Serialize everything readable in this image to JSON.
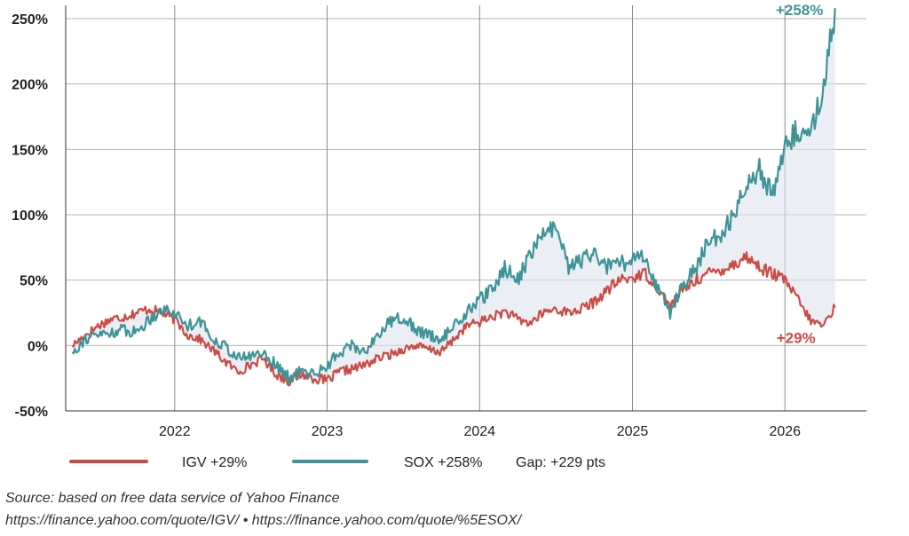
{
  "chart_data": {
    "type": "line",
    "ylim": [
      -50,
      250
    ],
    "yticks": [
      -50,
      0,
      50,
      100,
      150,
      200,
      250
    ],
    "ytick_labels": [
      "-50%",
      "0%",
      "50%",
      "100%",
      "150%",
      "200%",
      "250%"
    ],
    "xlim": [
      "2021-04-15",
      "2026-07-15"
    ],
    "xticks": [
      "2022-01-01",
      "2023-01-01",
      "2024-01-01",
      "2025-01-01",
      "2026-01-01"
    ],
    "xtick_labels": [
      "2022",
      "2023",
      "2024",
      "2025",
      "2026"
    ],
    "grid": true,
    "legend_position": "bottom-left",
    "fill_between_series": true,
    "series": [
      {
        "name": "IGV +29%",
        "color": "#cc4b45",
        "end_label": "+29%",
        "points": [
          [
            "2021-05-01",
            0
          ],
          [
            "2021-06-01",
            8
          ],
          [
            "2021-07-01",
            15
          ],
          [
            "2021-08-01",
            20
          ],
          [
            "2021-09-01",
            22
          ],
          [
            "2021-10-01",
            25
          ],
          [
            "2021-11-01",
            28
          ],
          [
            "2021-12-01",
            25
          ],
          [
            "2022-01-01",
            20
          ],
          [
            "2022-02-01",
            8
          ],
          [
            "2022-03-01",
            5
          ],
          [
            "2022-04-01",
            -3
          ],
          [
            "2022-05-01",
            -12
          ],
          [
            "2022-06-01",
            -20
          ],
          [
            "2022-07-01",
            -15
          ],
          [
            "2022-08-01",
            -10
          ],
          [
            "2022-09-01",
            -22
          ],
          [
            "2022-10-01",
            -27
          ],
          [
            "2022-11-01",
            -22
          ],
          [
            "2022-12-01",
            -25
          ],
          [
            "2023-01-01",
            -27
          ],
          [
            "2023-02-01",
            -20
          ],
          [
            "2023-03-01",
            -18
          ],
          [
            "2023-04-01",
            -15
          ],
          [
            "2023-05-01",
            -10
          ],
          [
            "2023-06-01",
            -7
          ],
          [
            "2023-07-01",
            -3
          ],
          [
            "2023-08-01",
            0
          ],
          [
            "2023-09-01",
            -3
          ],
          [
            "2023-10-01",
            -5
          ],
          [
            "2023-11-01",
            5
          ],
          [
            "2023-12-01",
            15
          ],
          [
            "2024-01-01",
            18
          ],
          [
            "2024-02-01",
            22
          ],
          [
            "2024-03-01",
            26
          ],
          [
            "2024-04-01",
            20
          ],
          [
            "2024-05-01",
            17
          ],
          [
            "2024-06-01",
            25
          ],
          [
            "2024-07-01",
            28
          ],
          [
            "2024-08-01",
            25
          ],
          [
            "2024-09-01",
            28
          ],
          [
            "2024-10-01",
            33
          ],
          [
            "2024-11-01",
            42
          ],
          [
            "2024-12-01",
            50
          ],
          [
            "2025-01-01",
            52
          ],
          [
            "2025-02-01",
            55
          ],
          [
            "2025-03-01",
            45
          ],
          [
            "2025-04-01",
            30
          ],
          [
            "2025-05-01",
            42
          ],
          [
            "2025-06-01",
            50
          ],
          [
            "2025-07-01",
            55
          ],
          [
            "2025-08-01",
            58
          ],
          [
            "2025-09-01",
            62
          ],
          [
            "2025-10-01",
            68
          ],
          [
            "2025-11-01",
            60
          ],
          [
            "2025-12-01",
            55
          ],
          [
            "2026-01-01",
            50
          ],
          [
            "2026-02-01",
            35
          ],
          [
            "2026-03-01",
            20
          ],
          [
            "2026-04-01",
            15
          ],
          [
            "2026-05-01",
            29
          ]
        ]
      },
      {
        "name": "SOX +258%",
        "color": "#3e9497",
        "end_label": "+258%",
        "points": [
          [
            "2021-05-01",
            -5
          ],
          [
            "2021-06-01",
            5
          ],
          [
            "2021-07-01",
            8
          ],
          [
            "2021-08-01",
            10
          ],
          [
            "2021-09-01",
            12
          ],
          [
            "2021-10-01",
            10
          ],
          [
            "2021-11-01",
            20
          ],
          [
            "2021-12-01",
            28
          ],
          [
            "2022-01-01",
            25
          ],
          [
            "2022-02-01",
            15
          ],
          [
            "2022-03-01",
            20
          ],
          [
            "2022-04-01",
            5
          ],
          [
            "2022-05-01",
            0
          ],
          [
            "2022-06-01",
            -10
          ],
          [
            "2022-07-01",
            -8
          ],
          [
            "2022-08-01",
            -5
          ],
          [
            "2022-09-01",
            -15
          ],
          [
            "2022-10-01",
            -25
          ],
          [
            "2022-11-01",
            -20
          ],
          [
            "2022-12-01",
            -22
          ],
          [
            "2023-01-01",
            -15
          ],
          [
            "2023-02-01",
            -5
          ],
          [
            "2023-03-01",
            0
          ],
          [
            "2023-04-01",
            -5
          ],
          [
            "2023-05-01",
            8
          ],
          [
            "2023-06-01",
            18
          ],
          [
            "2023-07-01",
            22
          ],
          [
            "2023-08-01",
            12
          ],
          [
            "2023-09-01",
            8
          ],
          [
            "2023-10-01",
            5
          ],
          [
            "2023-11-01",
            15
          ],
          [
            "2023-12-01",
            25
          ],
          [
            "2024-01-01",
            35
          ],
          [
            "2024-02-01",
            42
          ],
          [
            "2024-03-01",
            60
          ],
          [
            "2024-04-01",
            50
          ],
          [
            "2024-05-01",
            70
          ],
          [
            "2024-06-01",
            85
          ],
          [
            "2024-07-01",
            90
          ],
          [
            "2024-08-01",
            60
          ],
          [
            "2024-09-01",
            65
          ],
          [
            "2024-10-01",
            70
          ],
          [
            "2024-11-01",
            60
          ],
          [
            "2024-12-01",
            62
          ],
          [
            "2025-01-01",
            65
          ],
          [
            "2025-02-01",
            68
          ],
          [
            "2025-03-01",
            45
          ],
          [
            "2025-04-01",
            25
          ],
          [
            "2025-05-01",
            45
          ],
          [
            "2025-06-01",
            60
          ],
          [
            "2025-07-01",
            78
          ],
          [
            "2025-08-01",
            85
          ],
          [
            "2025-09-01",
            100
          ],
          [
            "2025-10-01",
            125
          ],
          [
            "2025-11-01",
            135
          ],
          [
            "2025-12-01",
            115
          ],
          [
            "2026-01-01",
            150
          ],
          [
            "2026-02-01",
            165
          ],
          [
            "2026-03-01",
            160
          ],
          [
            "2026-04-01",
            195
          ],
          [
            "2026-05-01",
            258
          ]
        ]
      }
    ],
    "legend_note": "Gap: +229 pts"
  },
  "source": {
    "line1": "Source: based on free data service of Yahoo Finance",
    "line2": "https://finance.yahoo.com/quote/IGV/ • https://finance.yahoo.com/quote/%5ESOX/"
  }
}
